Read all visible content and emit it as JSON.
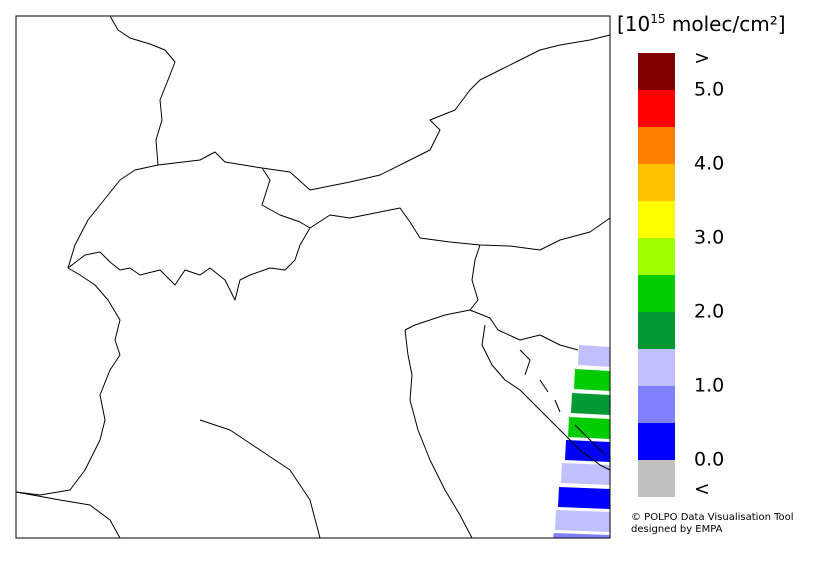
{
  "unit": {
    "prefix": "[10",
    "exponent": "15",
    "suffix": " molec/cm²]"
  },
  "colorbar": {
    "colors": [
      "#800000",
      "#ff0000",
      "#ff8000",
      "#ffc000",
      "#ffff00",
      "#a0ff00",
      "#00cc00",
      "#009933",
      "#c0c0ff",
      "#8080ff",
      "#0000ff",
      "#c0c0c0"
    ],
    "labels": [
      ">",
      "5.0",
      "4.0",
      "3.0",
      "2.0",
      "1.0",
      "0.0",
      "<"
    ]
  },
  "footer": {
    "line1": "© POLPO Data Visualisation Tool",
    "line2": "designed by EMPA"
  }
}
